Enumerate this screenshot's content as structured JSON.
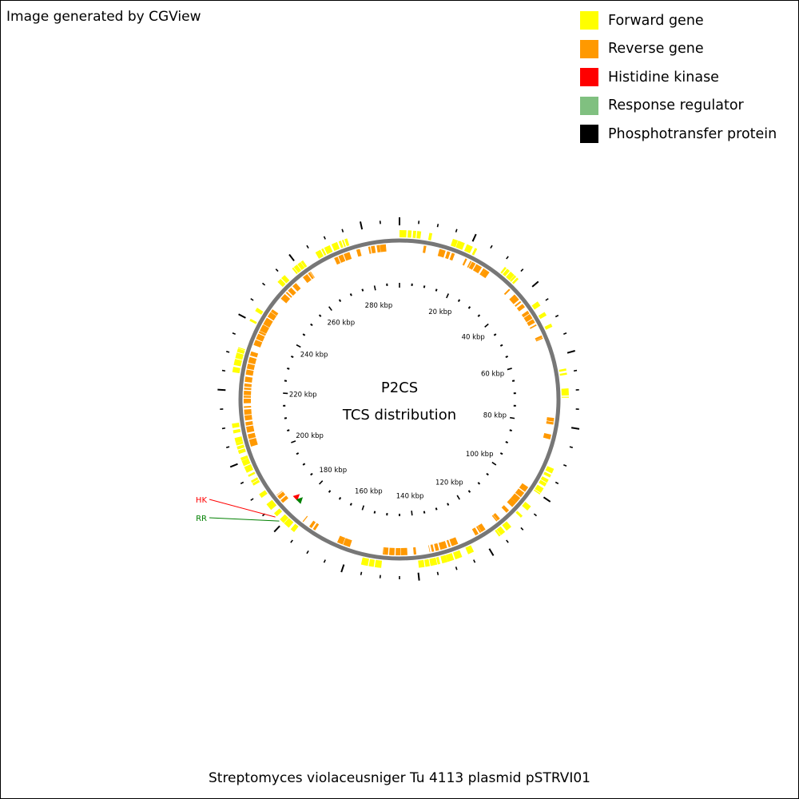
{
  "credit": "Image generated by CGView",
  "legend": [
    {
      "label": "Forward gene",
      "color": "#ffff00"
    },
    {
      "label": "Reverse gene",
      "color": "#ff9900"
    },
    {
      "label": "Histidine kinase",
      "color": "#ff0000"
    },
    {
      "label": "Response regulator",
      "color": "#80c080"
    },
    {
      "label": "Phosphotransfer protein",
      "color": "#000000"
    }
  ],
  "center": {
    "line1": "P2CS",
    "line2": "TCS distribution"
  },
  "footer": "Streptomyces violaceusniger Tu 4113 plasmid pSTRVI01",
  "genome": {
    "length_bp": 290000,
    "tick_labels": [
      "20 kbp",
      "40 kbp",
      "60 kbp",
      "80 kbp",
      "100 kbp",
      "120 kbp",
      "140 kbp",
      "160 kbp",
      "180 kbp",
      "200 kbp",
      "220 kbp",
      "240 kbp",
      "260 kbp",
      "280 kbp"
    ]
  },
  "markers": [
    {
      "label": "HK",
      "color": "#ff0000",
      "position_bp": 182500
    },
    {
      "label": "RR",
      "color": "#008000",
      "position_bp": 181000
    }
  ],
  "colors": {
    "backbone": "#777777",
    "hk_marker": "#ff0000",
    "rr_marker": "#008000"
  }
}
